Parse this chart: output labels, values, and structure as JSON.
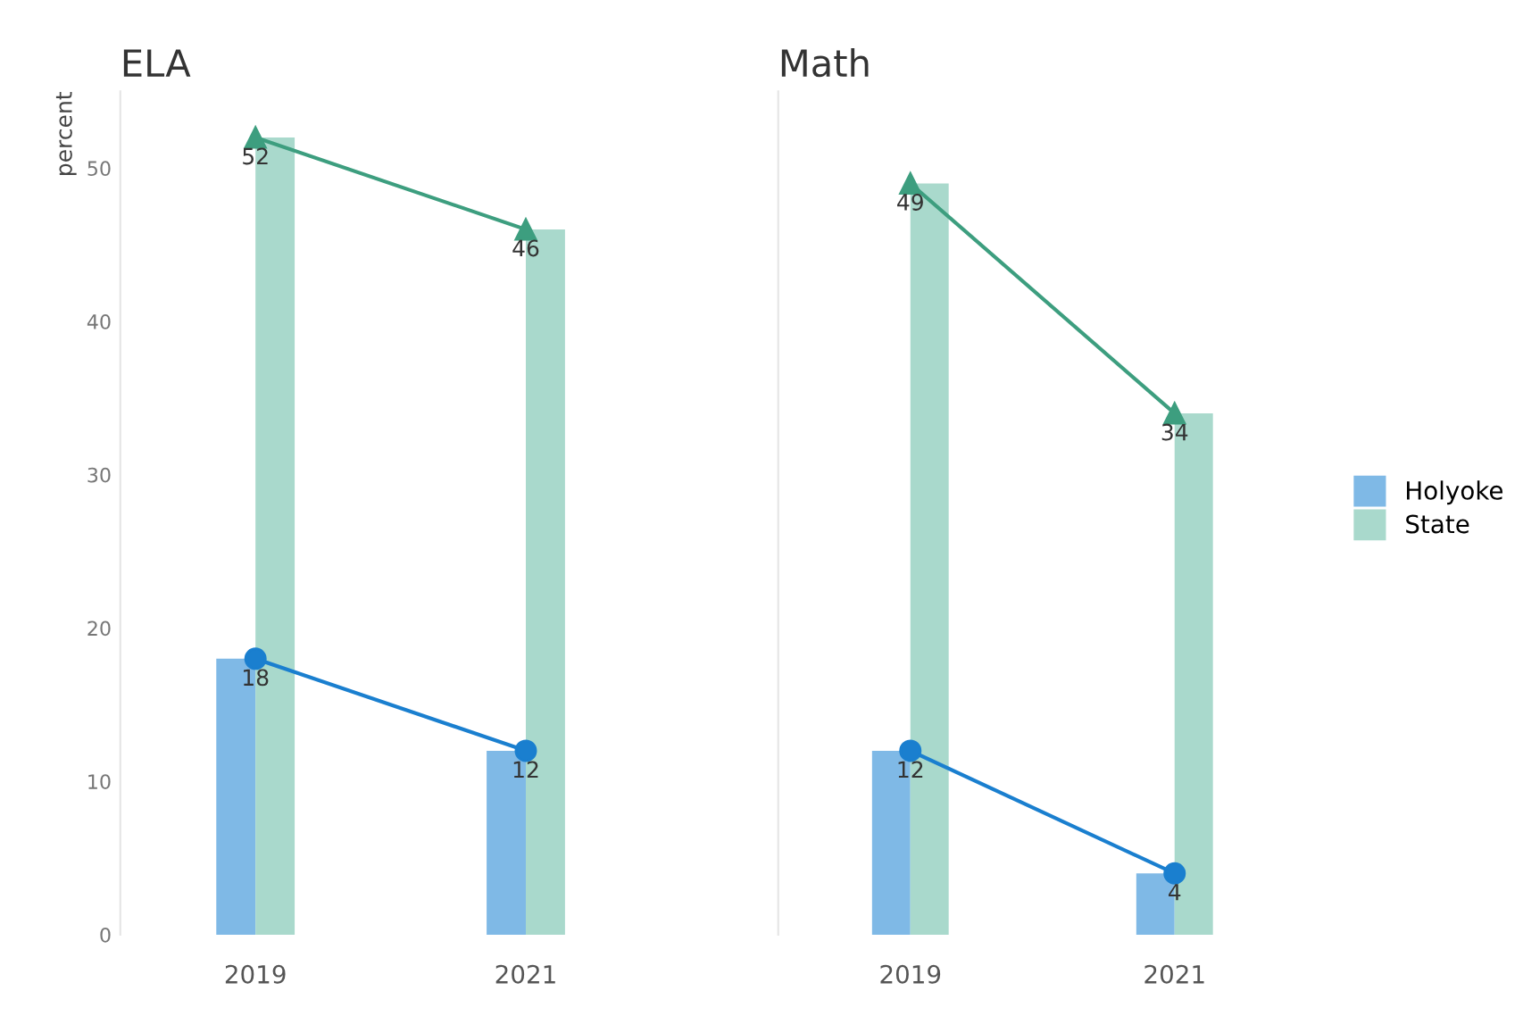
{
  "chart_data": [
    {
      "type": "bar",
      "title": "ELA",
      "ylabel": "percent",
      "categories": [
        "2019",
        "2021"
      ],
      "ylim": [
        0,
        55
      ],
      "yticks": [
        0,
        10,
        20,
        30,
        40,
        50
      ],
      "grid": false,
      "legend": "right",
      "series": [
        {
          "name": "Holyoke",
          "color": "#7fb9e6",
          "values": [
            18,
            12
          ]
        },
        {
          "name": "State",
          "color": "#a9d9cc",
          "values": [
            52,
            46
          ]
        },
        {
          "type": "line",
          "color": "#1a7fcf",
          "marker": "circle",
          "values": [
            18,
            12
          ],
          "value_labels": [
            "18",
            "12"
          ]
        },
        {
          "type": "line",
          "color": "#3d9e7f",
          "marker": "triangle",
          "values": [
            52,
            46
          ],
          "value_labels": [
            "52",
            "46"
          ]
        }
      ]
    },
    {
      "type": "bar",
      "title": "Math",
      "categories": [
        "2019",
        "2021"
      ],
      "ylim": [
        0,
        55
      ],
      "tick_labels": "x",
      "grid": false,
      "legend": "right",
      "series": [
        {
          "name": "Holyoke",
          "color": "#7fb9e6",
          "values": [
            12,
            4
          ]
        },
        {
          "name": "State",
          "color": "#a9d9cc",
          "values": [
            49,
            34
          ]
        },
        {
          "type": "line",
          "color": "#1a7fcf",
          "marker": "circle",
          "values": [
            12,
            4
          ],
          "value_labels": [
            "12",
            "4"
          ]
        },
        {
          "type": "line",
          "color": "#3d9e7f",
          "marker": "triangle",
          "values": [
            49,
            34
          ],
          "value_labels": [
            "49",
            "34"
          ]
        }
      ]
    }
  ]
}
